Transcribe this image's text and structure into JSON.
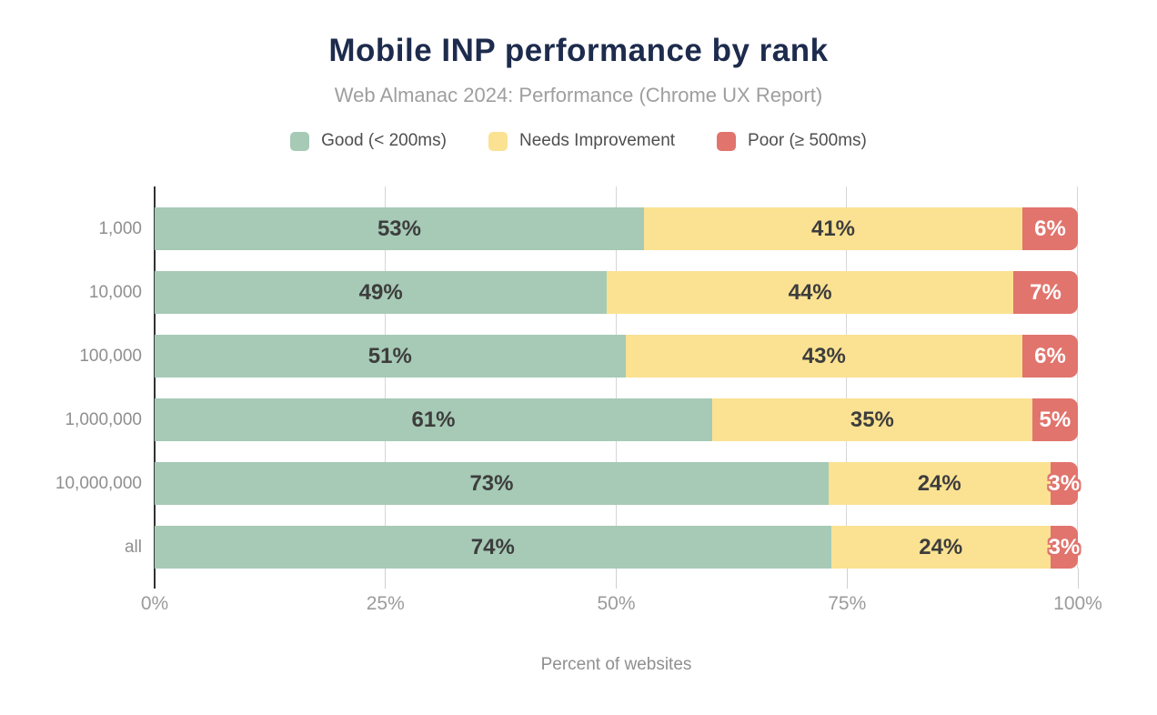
{
  "title": "Mobile INP performance by rank",
  "subtitle": "Web Almanac 2024: Performance (Chrome UX Report)",
  "legend": [
    {
      "label": "Good (< 200ms)",
      "color": "#a6cab6"
    },
    {
      "label": "Needs Improvement",
      "color": "#fbe292"
    },
    {
      "label": "Poor (≥ 500ms)",
      "color": "#e1746d"
    }
  ],
  "colors": {
    "good": "#a6cab6",
    "needs_improvement": "#fbe292",
    "poor": "#e1746d",
    "title": "#1d2b4d"
  },
  "chart_data": {
    "type": "bar",
    "orientation": "horizontal",
    "stacked": true,
    "title": "Mobile INP performance by rank",
    "subtitle": "Web Almanac 2024: Performance (Chrome UX Report)",
    "categories": [
      "1,000",
      "10,000",
      "100,000",
      "1,000,000",
      "10,000,000",
      "all"
    ],
    "series": [
      {
        "name": "Good (< 200ms)",
        "color": "#a6cab6",
        "values": [
          53,
          49,
          51,
          61,
          73,
          74
        ]
      },
      {
        "name": "Needs Improvement",
        "color": "#fbe292",
        "values": [
          41,
          44,
          43,
          35,
          24,
          24
        ]
      },
      {
        "name": "Poor (≥ 500ms)",
        "color": "#e1746d",
        "values": [
          6,
          7,
          6,
          5,
          3,
          3
        ]
      }
    ],
    "xlabel": "Percent of websites",
    "ylabel": "",
    "x_ticks": [
      "0%",
      "25%",
      "50%",
      "75%",
      "100%"
    ],
    "x_tick_positions": [
      0,
      25,
      50,
      75,
      100
    ],
    "xlim": [
      0,
      100
    ],
    "grid": true,
    "legend_position": "top",
    "value_suffix": "%"
  }
}
